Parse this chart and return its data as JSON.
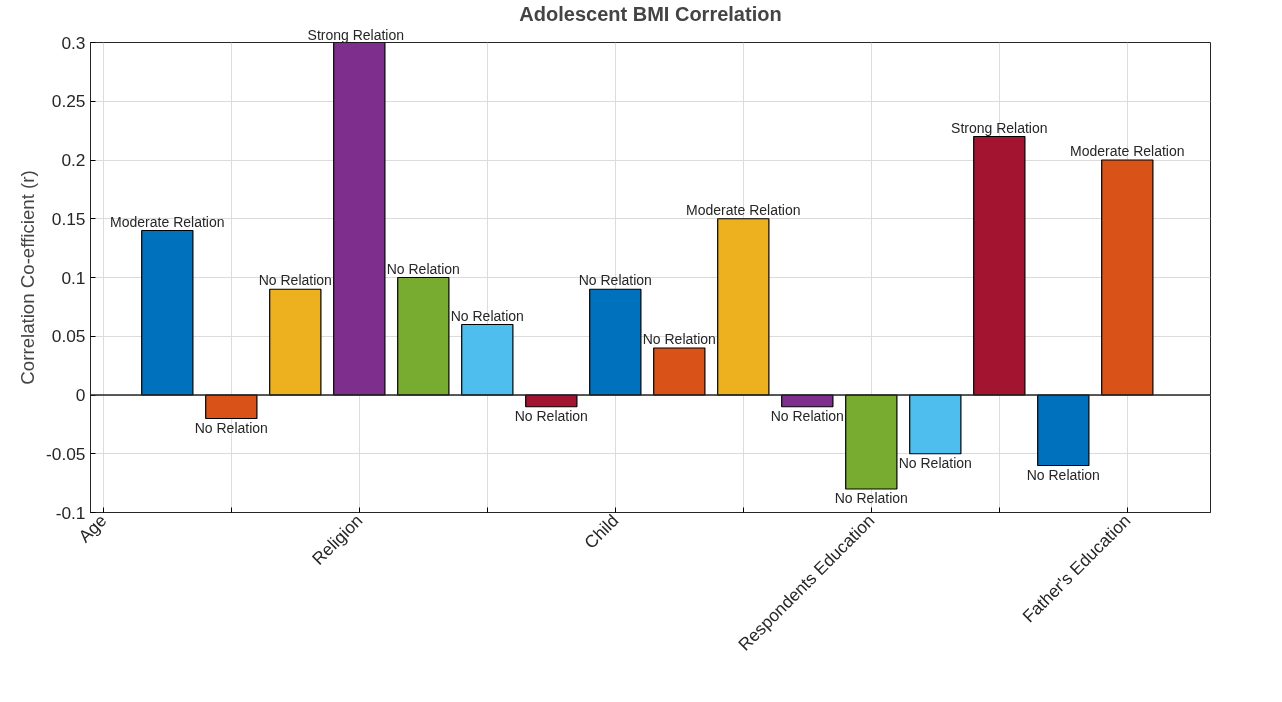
{
  "chart_data": {
    "type": "bar",
    "title": "Adolescent BMI Correlation",
    "ylabel": "Correlation Co-efficient (r)",
    "categories": [
      "Age",
      null,
      null,
      null,
      "Religion",
      null,
      null,
      null,
      "Child",
      null,
      null,
      null,
      "Respondents Education",
      null,
      null,
      null,
      "Father's Education"
    ],
    "values": [
      null,
      0.14,
      -0.02,
      0.09,
      0.3,
      0.1,
      0.06,
      -0.01,
      0.09,
      0.04,
      0.15,
      -0.01,
      -0.08,
      -0.05,
      0.22,
      -0.06,
      0.2
    ],
    "colors": [
      null,
      "#0072bd",
      "#d95319",
      "#edb120",
      "#7e2f8e",
      "#77ac30",
      "#4dbeee",
      "#a2142f",
      "#0072bd",
      "#d95319",
      "#edb120",
      "#7e2f8e",
      "#77ac30",
      "#4dbeee",
      "#a2142f",
      "#0072bd",
      "#d95319"
    ],
    "value_labels": [
      null,
      "Moderate Relation",
      "No Relation",
      "No Relation",
      "Strong Relation",
      "No Relation",
      "No Relation",
      "No Relation",
      "No Relation",
      "No Relation",
      "Moderate Relation",
      "No Relation",
      "No Relation",
      "No Relation",
      "Strong Relation",
      "No Relation",
      "Moderate Relation"
    ],
    "ylim": [
      -0.1,
      0.3
    ],
    "yticks": [
      -0.1,
      -0.05,
      0,
      0.05,
      0.1,
      0.15,
      0.2,
      0.25,
      0.3
    ],
    "ref_lines": [
      {
        "axis": "y",
        "value": 0,
        "color": "#262626"
      }
    ],
    "grid": true
  }
}
